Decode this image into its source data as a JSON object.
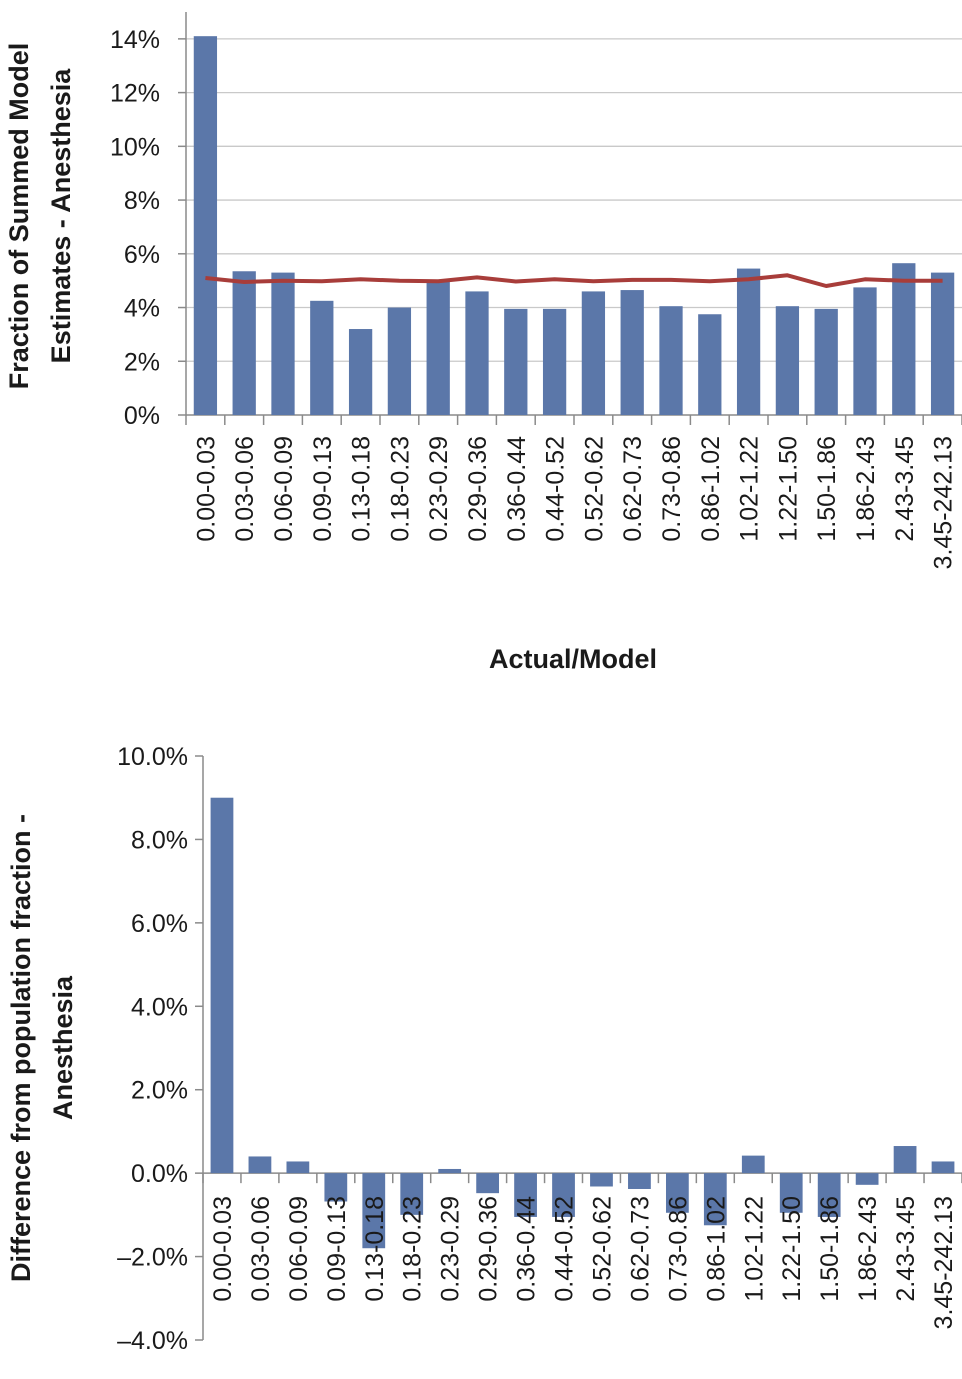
{
  "chart_data": [
    {
      "type": "bar",
      "categories": [
        "0.00-0.03",
        "0.03-0.06",
        "0.06-0.09",
        "0.09-0.13",
        "0.13-0.18",
        "0.18-0.23",
        "0.23-0.29",
        "0.29-0.36",
        "0.36-0.44",
        "0.44-0.52",
        "0.52-0.62",
        "0.62-0.73",
        "0.73-0.86",
        "0.86-1.02",
        "1.02-1.22",
        "1.22-1.50",
        "1.50-1.86",
        "1.86-2.43",
        "2.43-3.45",
        "3.45-242.13"
      ],
      "series": [
        {
          "type": "bar",
          "color": "#5b77a9",
          "values": [
            14.1,
            5.35,
            5.3,
            4.25,
            3.2,
            4.0,
            5.0,
            4.6,
            3.95,
            3.95,
            4.6,
            4.65,
            4.05,
            3.75,
            5.45,
            4.05,
            3.95,
            4.75,
            5.65,
            5.3
          ]
        },
        {
          "type": "line",
          "color": "#a83d3a",
          "values": [
            5.1,
            4.95,
            5.0,
            4.98,
            5.05,
            5.0,
            4.98,
            5.12,
            4.97,
            5.05,
            4.98,
            5.03,
            5.03,
            4.98,
            5.05,
            5.2,
            4.8,
            5.05,
            5.0,
            5.0
          ]
        }
      ],
      "ylabel_lines": [
        "Fraction of Summed Model",
        "Estimates - Anesthesia"
      ],
      "xlabel": "Actual/Model",
      "ylim": [
        0,
        15
      ],
      "yticks": [
        "0%",
        "2%",
        "4%",
        "6%",
        "8%",
        "10%",
        "12%",
        "14%"
      ],
      "grid": true
    },
    {
      "type": "bar",
      "categories": [
        "0.00-0.03",
        "0.03-0.06",
        "0.06-0.09",
        "0.09-0.13",
        "0.13-0.18",
        "0.18-0.23",
        "0.23-0.29",
        "0.29-0.36",
        "0.36-0.44",
        "0.44-0.52",
        "0.52-0.62",
        "0.62-0.73",
        "0.73-0.86",
        "0.86-1.02",
        "1.02-1.22",
        "1.22-1.50",
        "1.50-1.86",
        "1.86-2.43",
        "2.43-3.45",
        "3.45-242.13"
      ],
      "series": [
        {
          "type": "bar",
          "color": "#5b77a9",
          "values": [
            9.0,
            0.4,
            0.28,
            -0.68,
            -1.8,
            -1.0,
            0.1,
            -0.48,
            -1.05,
            -1.05,
            -0.32,
            -0.38,
            -0.95,
            -1.25,
            0.42,
            -0.95,
            -1.05,
            -0.28,
            0.65,
            0.28
          ]
        }
      ],
      "ylabel_lines": [
        "Difference from population fraction -",
        "Anesthesia"
      ],
      "ylim": [
        -4,
        10
      ],
      "yticks": [
        "–4.0%",
        "–2.0%",
        "0.0%",
        "2.0%",
        "4.0%",
        "6.0%",
        "8.0%",
        "10.0%"
      ],
      "grid": false
    }
  ]
}
